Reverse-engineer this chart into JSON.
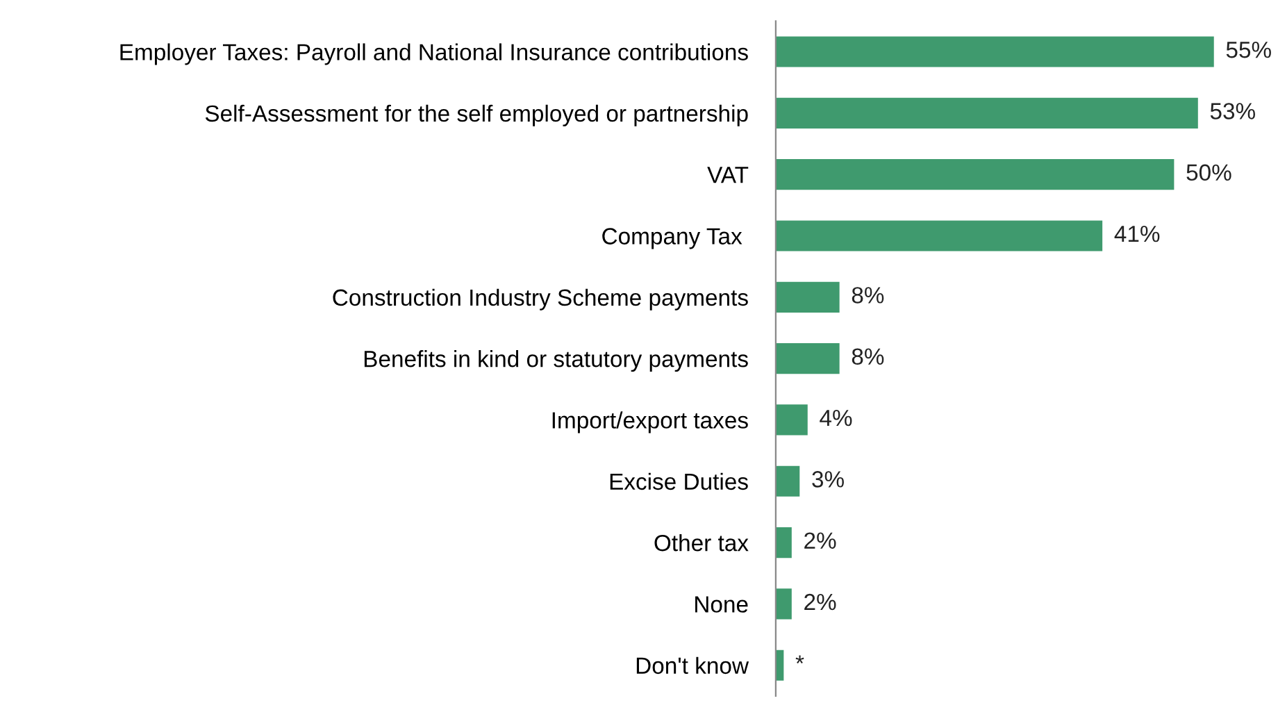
{
  "chart_data": {
    "type": "bar",
    "orientation": "horizontal",
    "categories": [
      "Employer Taxes: Payroll and National Insurance contributions",
      "Self-Assessment for the self employed or partnership",
      "VAT",
      "Company Tax ",
      "Construction Industry Scheme payments",
      "Benefits in kind or statutory payments",
      "Import/export taxes",
      "Excise Duties",
      "Other tax",
      "None",
      "Don't know"
    ],
    "values": [
      55,
      53,
      50,
      41,
      8,
      8,
      4,
      3,
      2,
      2,
      1
    ],
    "value_labels": [
      "55%",
      "53%",
      "50%",
      "41%",
      "8%",
      "8%",
      "4%",
      "3%",
      "2%",
      "2%",
      "*"
    ],
    "color": "#3f9a6e",
    "grid": false,
    "legend": false,
    "tick_labels": "y"
  }
}
